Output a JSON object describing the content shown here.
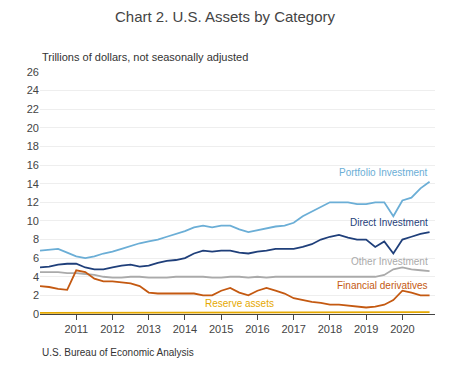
{
  "chart_data": {
    "type": "line",
    "title": "Chart 2. U.S. Assets by Category",
    "subtitle": "Trillions of dollars, not seasonally adjusted",
    "annotations": [
      "U.S. Bureau of Economic Analysis"
    ],
    "x": [
      2010.0,
      2010.25,
      2010.5,
      2010.75,
      2011.0,
      2011.25,
      2011.5,
      2011.75,
      2012.0,
      2012.25,
      2012.5,
      2012.75,
      2013.0,
      2013.25,
      2013.5,
      2013.75,
      2014.0,
      2014.25,
      2014.5,
      2014.75,
      2015.0,
      2015.25,
      2015.5,
      2015.75,
      2016.0,
      2016.25,
      2016.5,
      2016.75,
      2017.0,
      2017.25,
      2017.5,
      2017.75,
      2018.0,
      2018.25,
      2018.5,
      2018.75,
      2019.0,
      2019.25,
      2019.5,
      2019.75,
      2020.0,
      2020.25,
      2020.5,
      2020.75
    ],
    "series": [
      {
        "name": "Portfolio Investment",
        "color": "#6BAED6",
        "values": [
          6.8,
          6.9,
          7.0,
          6.6,
          6.2,
          6.0,
          6.2,
          6.5,
          6.7,
          7.0,
          7.3,
          7.6,
          7.8,
          8.0,
          8.3,
          8.6,
          8.9,
          9.3,
          9.5,
          9.3,
          9.5,
          9.5,
          9.1,
          8.8,
          9.0,
          9.2,
          9.4,
          9.5,
          9.8,
          10.5,
          11.0,
          11.5,
          12.0,
          12.0,
          12.0,
          11.8,
          11.8,
          12.0,
          12.0,
          10.5,
          12.2,
          12.5,
          13.5,
          14.2
        ]
      },
      {
        "name": "Direct Investment",
        "color": "#1F3F7A",
        "values": [
          5.0,
          5.1,
          5.3,
          5.4,
          5.4,
          5.0,
          4.8,
          4.8,
          5.0,
          5.2,
          5.3,
          5.1,
          5.2,
          5.5,
          5.7,
          5.8,
          6.0,
          6.5,
          6.8,
          6.7,
          6.8,
          6.8,
          6.6,
          6.5,
          6.7,
          6.8,
          7.0,
          7.0,
          7.0,
          7.2,
          7.5,
          8.0,
          8.3,
          8.5,
          8.2,
          8.0,
          8.0,
          7.2,
          7.8,
          6.5,
          8.0,
          8.3,
          8.6,
          8.8
        ]
      },
      {
        "name": "Other Investment",
        "color": "#AAAAAA",
        "values": [
          4.5,
          4.5,
          4.5,
          4.4,
          4.4,
          4.3,
          4.2,
          4.0,
          3.9,
          3.9,
          4.0,
          4.0,
          3.9,
          3.9,
          3.9,
          4.0,
          4.0,
          4.0,
          4.0,
          3.9,
          3.9,
          4.0,
          4.0,
          3.9,
          4.0,
          3.9,
          4.0,
          4.0,
          4.0,
          4.0,
          4.0,
          4.0,
          4.0,
          4.0,
          4.0,
          4.0,
          4.0,
          4.0,
          4.2,
          4.8,
          5.0,
          4.8,
          4.7,
          4.6
        ]
      },
      {
        "name": "Financial derivatives",
        "color": "#C45911",
        "values": [
          3.0,
          2.9,
          2.7,
          2.6,
          4.7,
          4.5,
          3.8,
          3.5,
          3.5,
          3.4,
          3.3,
          3.0,
          2.3,
          2.2,
          2.2,
          2.2,
          2.2,
          2.2,
          2.0,
          2.0,
          2.5,
          2.8,
          2.3,
          2.0,
          2.5,
          2.8,
          2.5,
          2.2,
          1.7,
          1.5,
          1.3,
          1.2,
          1.0,
          1.0,
          0.9,
          0.8,
          0.7,
          0.8,
          1.0,
          1.5,
          2.5,
          2.3,
          2.0,
          2.0
        ]
      },
      {
        "name": "Reserve assets",
        "color": "#E5A800",
        "values": [
          0.12,
          0.12,
          0.12,
          0.12,
          0.12,
          0.12,
          0.12,
          0.12,
          0.12,
          0.12,
          0.12,
          0.12,
          0.12,
          0.12,
          0.12,
          0.12,
          0.12,
          0.12,
          0.12,
          0.12,
          0.12,
          0.12,
          0.12,
          0.12,
          0.12,
          0.12,
          0.12,
          0.12,
          0.12,
          0.12,
          0.12,
          0.12,
          0.12,
          0.12,
          0.12,
          0.12,
          0.12,
          0.12,
          0.12,
          0.12,
          0.12,
          0.15,
          0.18,
          0.2
        ]
      }
    ],
    "xlim": [
      2010.0,
      2020.9
    ],
    "xticks": [
      2011,
      2012,
      2013,
      2014,
      2015,
      2016,
      2017,
      2018,
      2019,
      2020
    ],
    "ylim": [
      0,
      26
    ],
    "yticks": [
      0,
      2,
      4,
      6,
      8,
      10,
      12,
      14,
      16,
      18,
      20,
      22,
      24,
      26
    ],
    "grid": true
  }
}
